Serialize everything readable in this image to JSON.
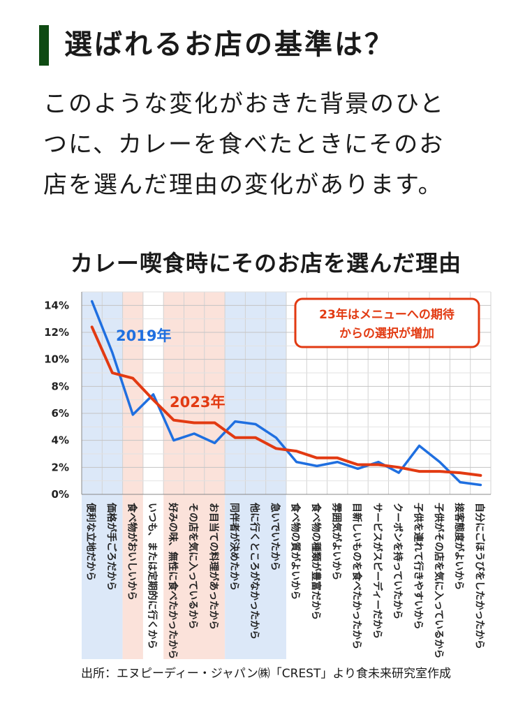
{
  "heading": "選ばれるお店の基準は？",
  "body_lines": [
    "このような変化がおきた背景のひと",
    "つに、カレーを食べたときにそのお",
    "店を選んだ理由の変化があります。"
  ],
  "source": "出所：エヌピーディー・ジャパン㈱「CREST」より食未来研究室作成",
  "colors": {
    "series_2019": "#1f6fe0",
    "series_2023": "#e23a12",
    "band_blue": "#dce8f8",
    "band_pink": "#fbe2da",
    "heading_bar": "#0e4a12"
  },
  "chart_data": {
    "type": "line",
    "title": "カレー喫食時にそのお店を選んだ理由",
    "annotation": [
      "23年はメニューへの期待",
      "からの選択が増加"
    ],
    "categories": [
      "便利な立地だから",
      "価格が手ごろだから",
      "食べ物がおいしいから",
      "いつも、または定期的に行くから",
      "好みの味、無性に食べたかったから",
      "その店を気に入っているから",
      "お目当ての料理があったから",
      "同伴者が決めたから",
      "他に行くところがなかったから",
      "急いでいたから",
      "食べ物の質がよいから",
      "食べ物の種類が豊富だから",
      "雰囲気がよいから",
      "目新しいものを食べたかったから",
      "サービスがスピーディーだから",
      "クーポンを持っていたから",
      "子供を連れて行きやすいから",
      "子供がその店を気に入っているから",
      "接客態度がよいから",
      "自分にごほうびをしたかったから"
    ],
    "series": [
      {
        "name": "2019年",
        "values": [
          14.3,
          10.5,
          5.9,
          7.4,
          4.0,
          4.5,
          3.8,
          5.4,
          5.2,
          4.2,
          2.4,
          2.1,
          2.4,
          1.9,
          2.4,
          1.6,
          3.6,
          2.4,
          0.9,
          0.7
        ]
      },
      {
        "name": "2023年",
        "values": [
          12.4,
          9.0,
          8.6,
          7.0,
          5.5,
          5.3,
          5.3,
          4.2,
          4.2,
          3.4,
          3.2,
          2.7,
          2.7,
          2.2,
          2.2,
          2.0,
          1.7,
          1.7,
          1.6,
          1.4
        ]
      }
    ],
    "yticks": [
      "0%",
      "2%",
      "4%",
      "6%",
      "8%",
      "10%",
      "12%",
      "14%"
    ],
    "ylim": [
      0,
      15
    ],
    "grid": true,
    "bands": [
      {
        "from": 0,
        "to": 1,
        "color": "blue"
      },
      {
        "from": 2,
        "to": 2,
        "color": "pink"
      },
      {
        "from": 4,
        "to": 6,
        "color": "pink"
      },
      {
        "from": 7,
        "to": 9,
        "color": "blue"
      }
    ]
  }
}
